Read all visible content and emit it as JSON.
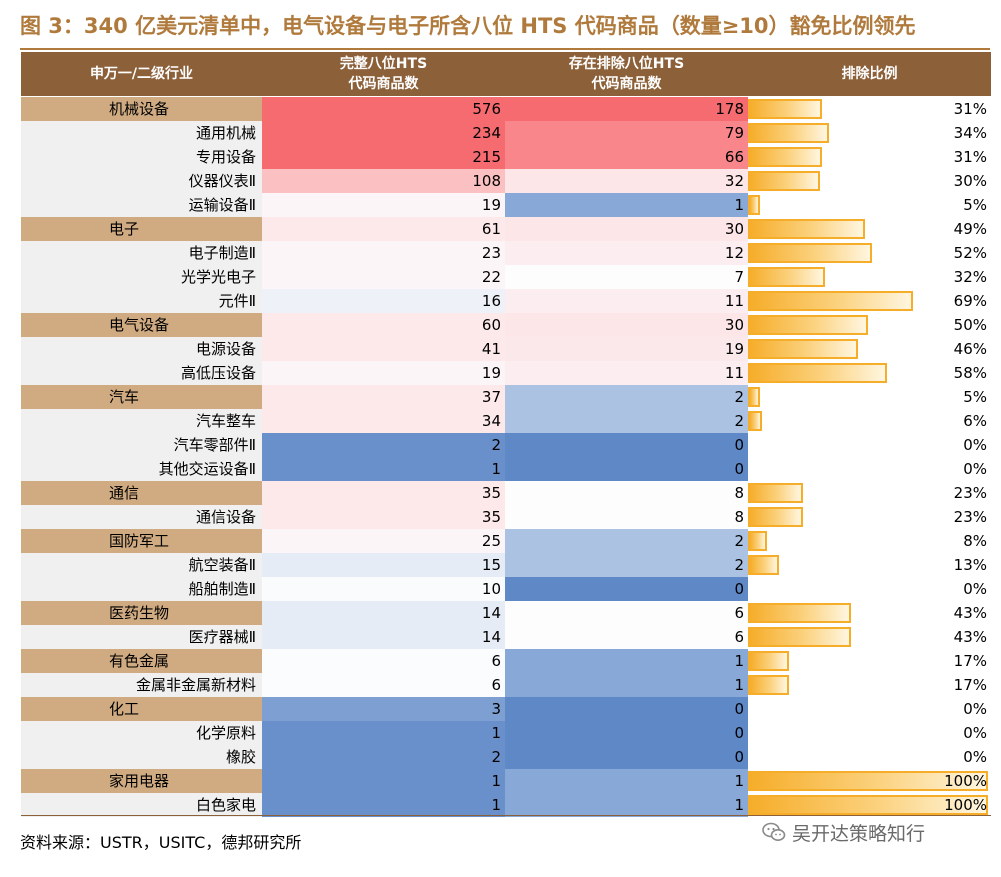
{
  "title": "图 3：340 亿美元清单中，电气设备与电子所含八位 HTS 代码商品（数量≥10）豁免比例领先",
  "header": {
    "col_industry": "申万一/二级行业",
    "col_total": [
      "完整八位HTS",
      "代码商品数"
    ],
    "col_excluded": [
      "存在排除八位HTS",
      "代码商品数"
    ],
    "col_ratio": "排除比例"
  },
  "colors": {
    "accent": "#b07a3c",
    "header_bg": "#8c6039",
    "category_bg": "#d0ab82",
    "bar": "#f6ad2a"
  },
  "chart_data": {
    "type": "table",
    "columns": [
      "申万一/二级行业",
      "完整八位HTS代码商品数",
      "存在排除八位HTS代码商品数",
      "排除比例"
    ],
    "rows": [
      {
        "name": "机械设备",
        "level": 1,
        "total": 576,
        "excluded": 178,
        "ratio": "31%"
      },
      {
        "name": "通用机械",
        "level": 2,
        "total": 234,
        "excluded": 79,
        "ratio": "34%"
      },
      {
        "name": "专用设备",
        "level": 2,
        "total": 215,
        "excluded": 66,
        "ratio": "31%"
      },
      {
        "name": "仪器仪表Ⅱ",
        "level": 2,
        "total": 108,
        "excluded": 32,
        "ratio": "30%"
      },
      {
        "name": "运输设备Ⅱ",
        "level": 2,
        "total": 19,
        "excluded": 1,
        "ratio": "5%"
      },
      {
        "name": "电子",
        "level": 1,
        "total": 61,
        "excluded": 30,
        "ratio": "49%"
      },
      {
        "name": "电子制造Ⅱ",
        "level": 2,
        "total": 23,
        "excluded": 12,
        "ratio": "52%"
      },
      {
        "name": "光学光电子",
        "level": 2,
        "total": 22,
        "excluded": 7,
        "ratio": "32%"
      },
      {
        "name": "元件Ⅱ",
        "level": 2,
        "total": 16,
        "excluded": 11,
        "ratio": "69%"
      },
      {
        "name": "电气设备",
        "level": 1,
        "total": 60,
        "excluded": 30,
        "ratio": "50%"
      },
      {
        "name": "电源设备",
        "level": 2,
        "total": 41,
        "excluded": 19,
        "ratio": "46%"
      },
      {
        "name": "高低压设备",
        "level": 2,
        "total": 19,
        "excluded": 11,
        "ratio": "58%"
      },
      {
        "name": "汽车",
        "level": 1,
        "total": 37,
        "excluded": 2,
        "ratio": "5%"
      },
      {
        "name": "汽车整车",
        "level": 2,
        "total": 34,
        "excluded": 2,
        "ratio": "6%"
      },
      {
        "name": "汽车零部件Ⅱ",
        "level": 2,
        "total": 2,
        "excluded": 0,
        "ratio": "0%"
      },
      {
        "name": "其他交运设备Ⅱ",
        "level": 2,
        "total": 1,
        "excluded": 0,
        "ratio": "0%"
      },
      {
        "name": "通信",
        "level": 1,
        "total": 35,
        "excluded": 8,
        "ratio": "23%"
      },
      {
        "name": "通信设备",
        "level": 2,
        "total": 35,
        "excluded": 8,
        "ratio": "23%"
      },
      {
        "name": "国防军工",
        "level": 1,
        "total": 25,
        "excluded": 2,
        "ratio": "8%"
      },
      {
        "name": "航空装备Ⅱ",
        "level": 2,
        "total": 15,
        "excluded": 2,
        "ratio": "13%"
      },
      {
        "name": "船舶制造Ⅱ",
        "level": 2,
        "total": 10,
        "excluded": 0,
        "ratio": "0%"
      },
      {
        "name": "医药生物",
        "level": 1,
        "total": 14,
        "excluded": 6,
        "ratio": "43%"
      },
      {
        "name": "医疗器械Ⅱ",
        "level": 2,
        "total": 14,
        "excluded": 6,
        "ratio": "43%"
      },
      {
        "name": "有色金属",
        "level": 1,
        "total": 6,
        "excluded": 1,
        "ratio": "17%"
      },
      {
        "name": "金属非金属新材料",
        "level": 2,
        "total": 6,
        "excluded": 1,
        "ratio": "17%"
      },
      {
        "name": "化工",
        "level": 1,
        "total": 3,
        "excluded": 0,
        "ratio": "0%"
      },
      {
        "name": "化学原料",
        "level": 2,
        "total": 1,
        "excluded": 0,
        "ratio": "0%"
      },
      {
        "name": "橡胶",
        "level": 2,
        "total": 2,
        "excluded": 0,
        "ratio": "0%"
      },
      {
        "name": "家用电器",
        "level": 1,
        "total": 1,
        "excluded": 1,
        "ratio": "100%"
      },
      {
        "name": "白色家电",
        "level": 2,
        "total": 1,
        "excluded": 1,
        "ratio": "100%"
      }
    ]
  },
  "source": "资料来源：USTR，USITC，德邦研究所",
  "watermark": "吴开达策略知行"
}
